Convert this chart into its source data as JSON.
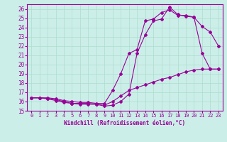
{
  "xlabel": "Windchill (Refroidissement éolien,°C)",
  "bg_color": "#cceee8",
  "grid_color": "#aaddcc",
  "line_color": "#990099",
  "xlim": [
    -0.5,
    23.5
  ],
  "ylim": [
    15,
    26.5
  ],
  "xticks": [
    0,
    1,
    2,
    3,
    4,
    5,
    6,
    7,
    8,
    9,
    10,
    11,
    12,
    13,
    14,
    15,
    16,
    17,
    18,
    19,
    20,
    21,
    22,
    23
  ],
  "yticks": [
    15,
    16,
    17,
    18,
    19,
    20,
    21,
    22,
    23,
    24,
    25,
    26
  ],
  "line1_x": [
    0,
    1,
    2,
    3,
    4,
    5,
    6,
    7,
    8,
    9,
    10,
    11,
    12,
    13,
    14,
    15,
    16,
    17,
    18,
    19,
    20,
    21,
    22,
    23
  ],
  "line1_y": [
    16.4,
    16.4,
    16.3,
    16.2,
    16.0,
    15.8,
    15.7,
    15.7,
    15.7,
    15.5,
    15.6,
    16.0,
    16.8,
    21.2,
    23.2,
    24.7,
    24.9,
    26.2,
    25.4,
    25.2,
    25.1,
    21.2,
    19.5,
    19.5
  ],
  "line2_x": [
    0,
    1,
    2,
    3,
    4,
    5,
    6,
    7,
    8,
    9,
    10,
    11,
    12,
    13,
    14,
    15,
    16,
    17,
    18,
    19,
    20,
    21,
    22,
    23
  ],
  "line2_y": [
    16.4,
    16.4,
    16.4,
    16.3,
    16.1,
    16.0,
    15.9,
    15.9,
    15.8,
    15.8,
    17.2,
    19.0,
    21.2,
    21.6,
    24.7,
    24.9,
    25.6,
    25.9,
    25.3,
    25.3,
    25.1,
    24.1,
    23.5,
    22.0
  ],
  "line3_x": [
    0,
    1,
    2,
    3,
    4,
    5,
    6,
    7,
    8,
    9,
    10,
    11,
    12,
    13,
    14,
    15,
    16,
    17,
    18,
    19,
    20,
    21,
    22,
    23
  ],
  "line3_y": [
    16.4,
    16.4,
    16.3,
    16.1,
    15.9,
    15.8,
    15.8,
    15.8,
    15.7,
    15.6,
    16.0,
    16.6,
    17.2,
    17.5,
    17.8,
    18.1,
    18.4,
    18.6,
    18.9,
    19.2,
    19.4,
    19.5,
    19.5,
    19.5
  ]
}
